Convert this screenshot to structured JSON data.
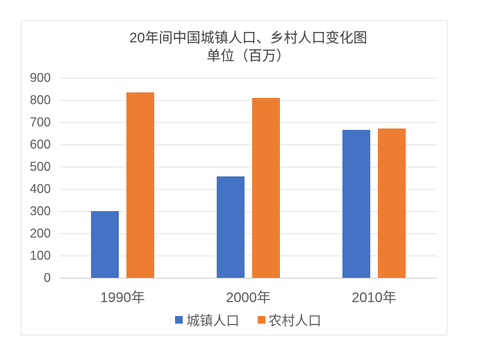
{
  "colors": {
    "grid": "#E0E0E0",
    "axis": "#C9C9C9",
    "frame_border": "#E3E3E3",
    "title_text": "#404040",
    "axis_text": "#595959"
  },
  "chart_data": {
    "type": "bar",
    "title": "20年间中国城镇人口、乡村人口变化图",
    "subtitle": "单位（百万）",
    "categories": [
      "1990年",
      "2000年",
      "2010年"
    ],
    "series": [
      {
        "name": "城镇人口",
        "color": "#4472C4",
        "values": [
          300,
          457,
          666
        ]
      },
      {
        "name": "农村人口",
        "color": "#ED7D31",
        "values": [
          834,
          808,
          671
        ]
      }
    ],
    "ylim": [
      0,
      900
    ],
    "ytick_step": 100,
    "ytick_labels": [
      "0",
      "100",
      "200",
      "300",
      "400",
      "500",
      "600",
      "700",
      "800",
      "900"
    ],
    "grid": true,
    "legend_position": "bottom"
  }
}
